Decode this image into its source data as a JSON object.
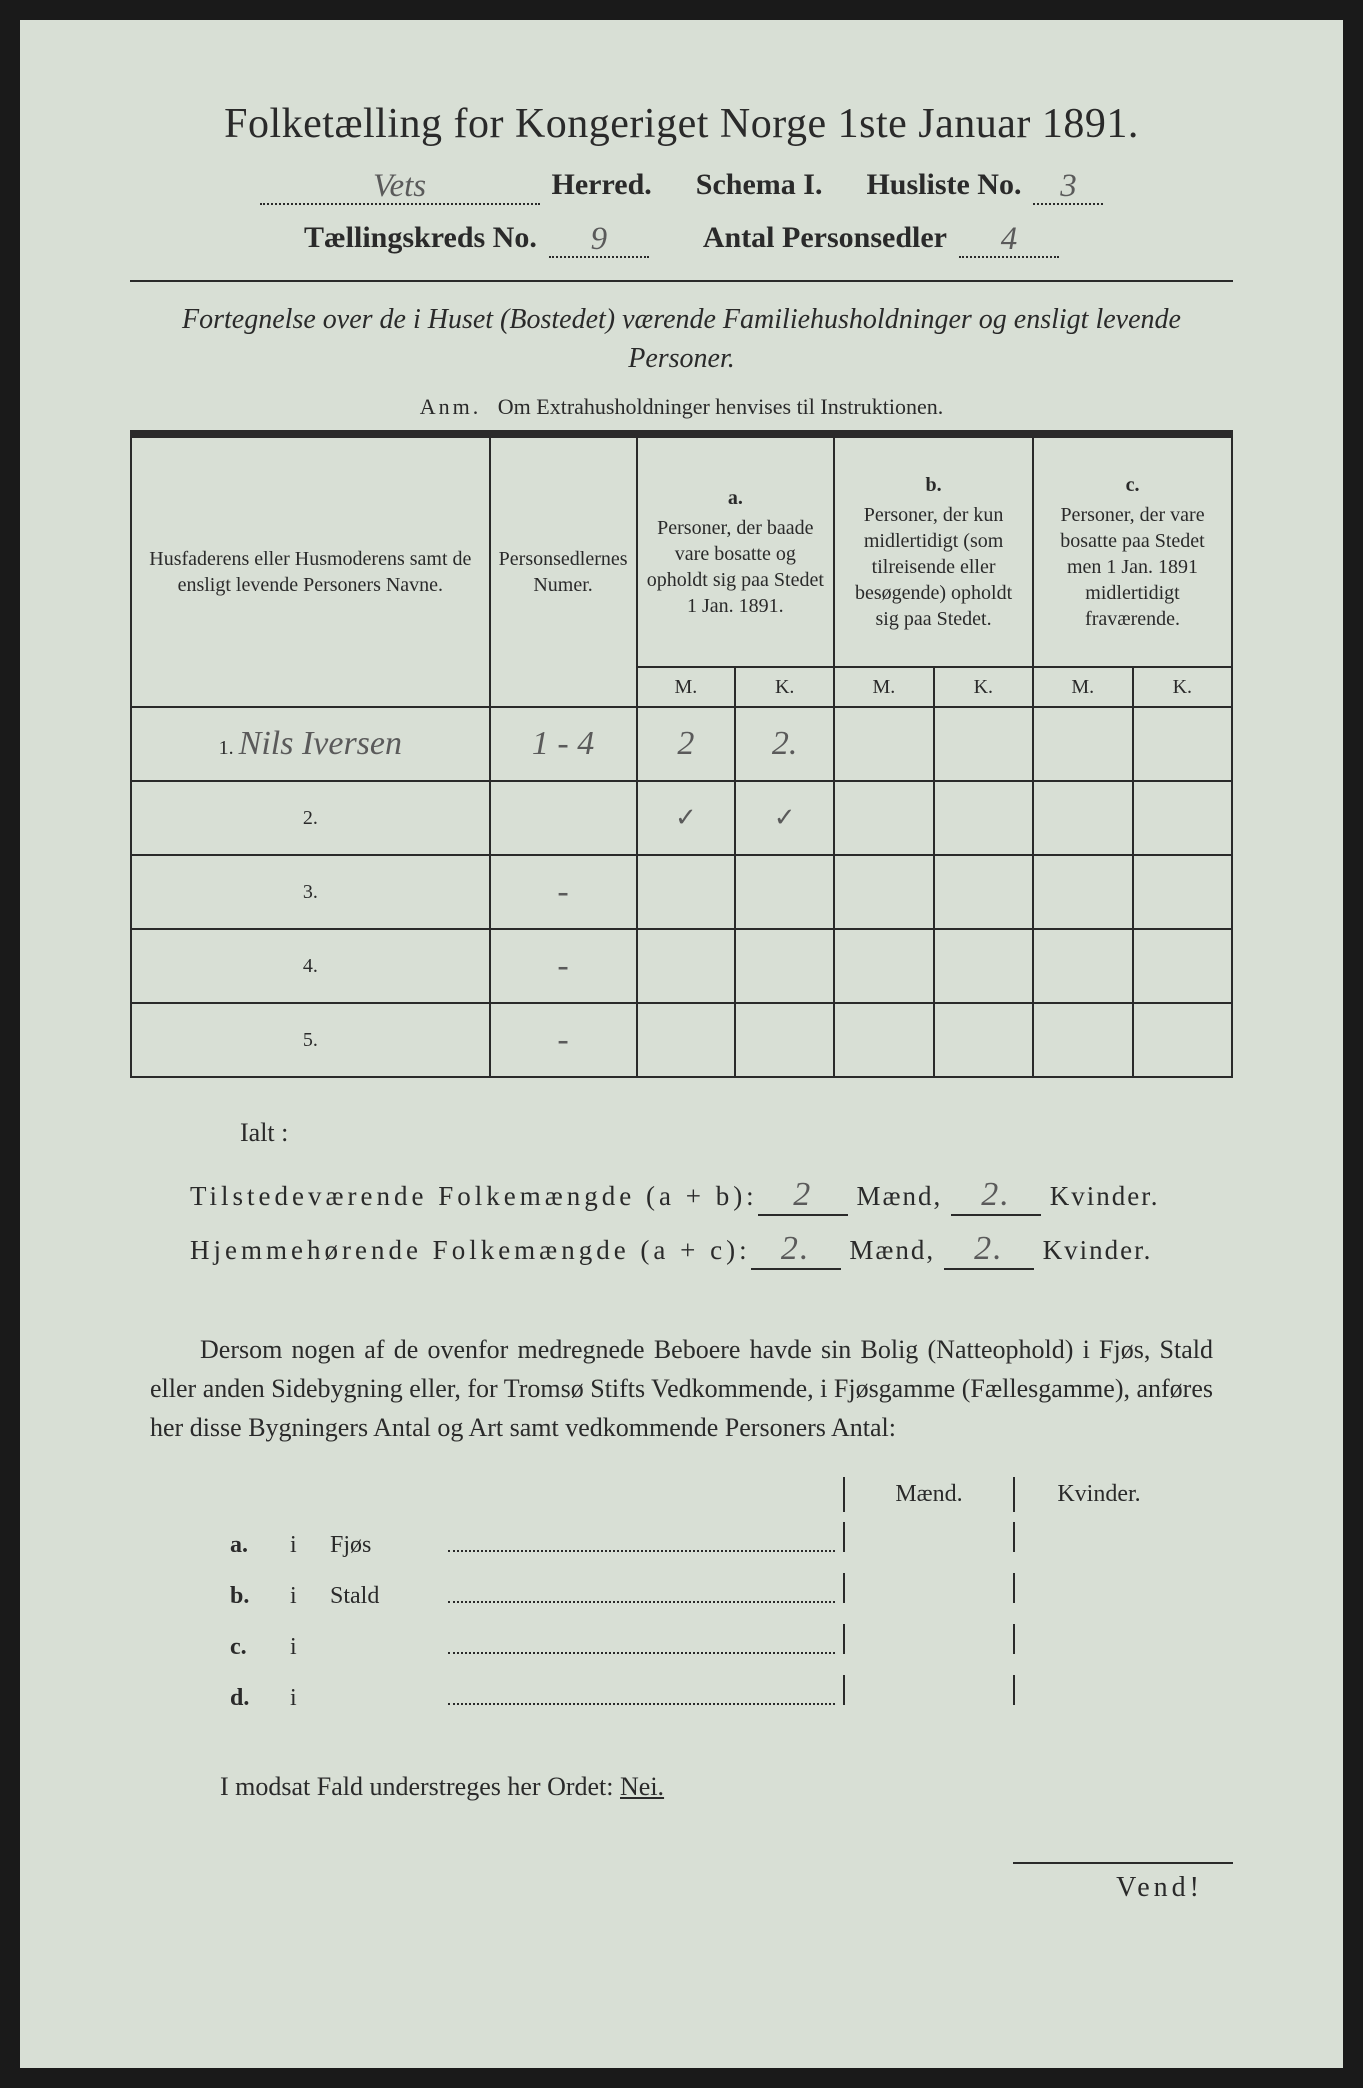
{
  "title": "Folketælling for Kongeriget Norge 1ste Januar 1891.",
  "header": {
    "herred_value": "Vets",
    "herred_label": "Herred.",
    "schema_label": "Schema I.",
    "husliste_label": "Husliste No.",
    "husliste_value": "3",
    "kreds_label": "Tællingskreds No.",
    "kreds_value": "9",
    "antal_label": "Antal Personsedler",
    "antal_value": "4"
  },
  "intro": {
    "line": "Fortegnelse over de i Huset (Bostedet) værende Familiehusholdninger og ensligt levende Personer.",
    "anm_prefix": "Anm.",
    "anm_text": "Om Extrahusholdninger henvises til Instruktionen."
  },
  "table": {
    "col_name": "Husfaderens eller Husmoderens samt de ensligt levende Personers Navne.",
    "col_num": "Personsedlernes Numer.",
    "col_a_label": "a.",
    "col_a": "Personer, der baade vare bosatte og opholdt sig paa Stedet 1 Jan. 1891.",
    "col_b_label": "b.",
    "col_b": "Personer, der kun midlertidigt (som tilreisende eller besøgende) opholdt sig paa Stedet.",
    "col_c_label": "c.",
    "col_c": "Personer, der vare bosatte paa Stedet men 1 Jan. 1891 midlertidigt fraværende.",
    "m": "M.",
    "k": "K.",
    "rows": [
      {
        "n": "1.",
        "name": "Nils Iversen",
        "num": "1 - 4",
        "a_m": "2",
        "a_k": "2.",
        "b_m": "",
        "b_k": "",
        "c_m": "",
        "c_k": ""
      },
      {
        "n": "2.",
        "name": "",
        "num": "",
        "a_m": "✓",
        "a_k": "✓",
        "b_m": "",
        "b_k": "",
        "c_m": "",
        "c_k": ""
      },
      {
        "n": "3.",
        "name": "",
        "num": "-",
        "a_m": "",
        "a_k": "",
        "b_m": "",
        "b_k": "",
        "c_m": "",
        "c_k": ""
      },
      {
        "n": "4.",
        "name": "",
        "num": "-",
        "a_m": "",
        "a_k": "",
        "b_m": "",
        "b_k": "",
        "c_m": "",
        "c_k": ""
      },
      {
        "n": "5.",
        "name": "",
        "num": "-",
        "a_m": "",
        "a_k": "",
        "b_m": "",
        "b_k": "",
        "c_m": "",
        "c_k": ""
      }
    ]
  },
  "ialt": "Ialt :",
  "summary": {
    "line1_label": "Tilstedeværende Folkemængde (a + b):",
    "line1_m": "2",
    "line1_k": "2.",
    "line2_label": "Hjemmehørende Folkemængde (a + c):",
    "line2_m": "2.",
    "line2_k": "2.",
    "maend": "Mænd,",
    "kvinder": "Kvinder."
  },
  "paragraph": "Dersom nogen af de ovenfor medregnede Beboere havde sin Bolig (Natteophold) i Fjøs, Stald eller anden Sidebygning eller, for Tromsø Stifts Vedkommende, i Fjøsgamme (Fællesgamme), anføres her disse Bygningers Antal og Art samt vedkommende Personers Antal:",
  "bldg": {
    "maend": "Mænd.",
    "kvinder": "Kvinder.",
    "rows": [
      {
        "key": "a.",
        "i": "i",
        "label": "Fjøs"
      },
      {
        "key": "b.",
        "i": "i",
        "label": "Stald"
      },
      {
        "key": "c.",
        "i": "i",
        "label": ""
      },
      {
        "key": "d.",
        "i": "i",
        "label": ""
      }
    ]
  },
  "footer": {
    "text_pre": "I modsat Fald understreges her Ordet: ",
    "nei": "Nei.",
    "vend": "Vend!"
  },
  "colors": {
    "paper": "#d8dfd5",
    "ink": "#2a2a2a",
    "handwriting": "#5a5a5a"
  }
}
